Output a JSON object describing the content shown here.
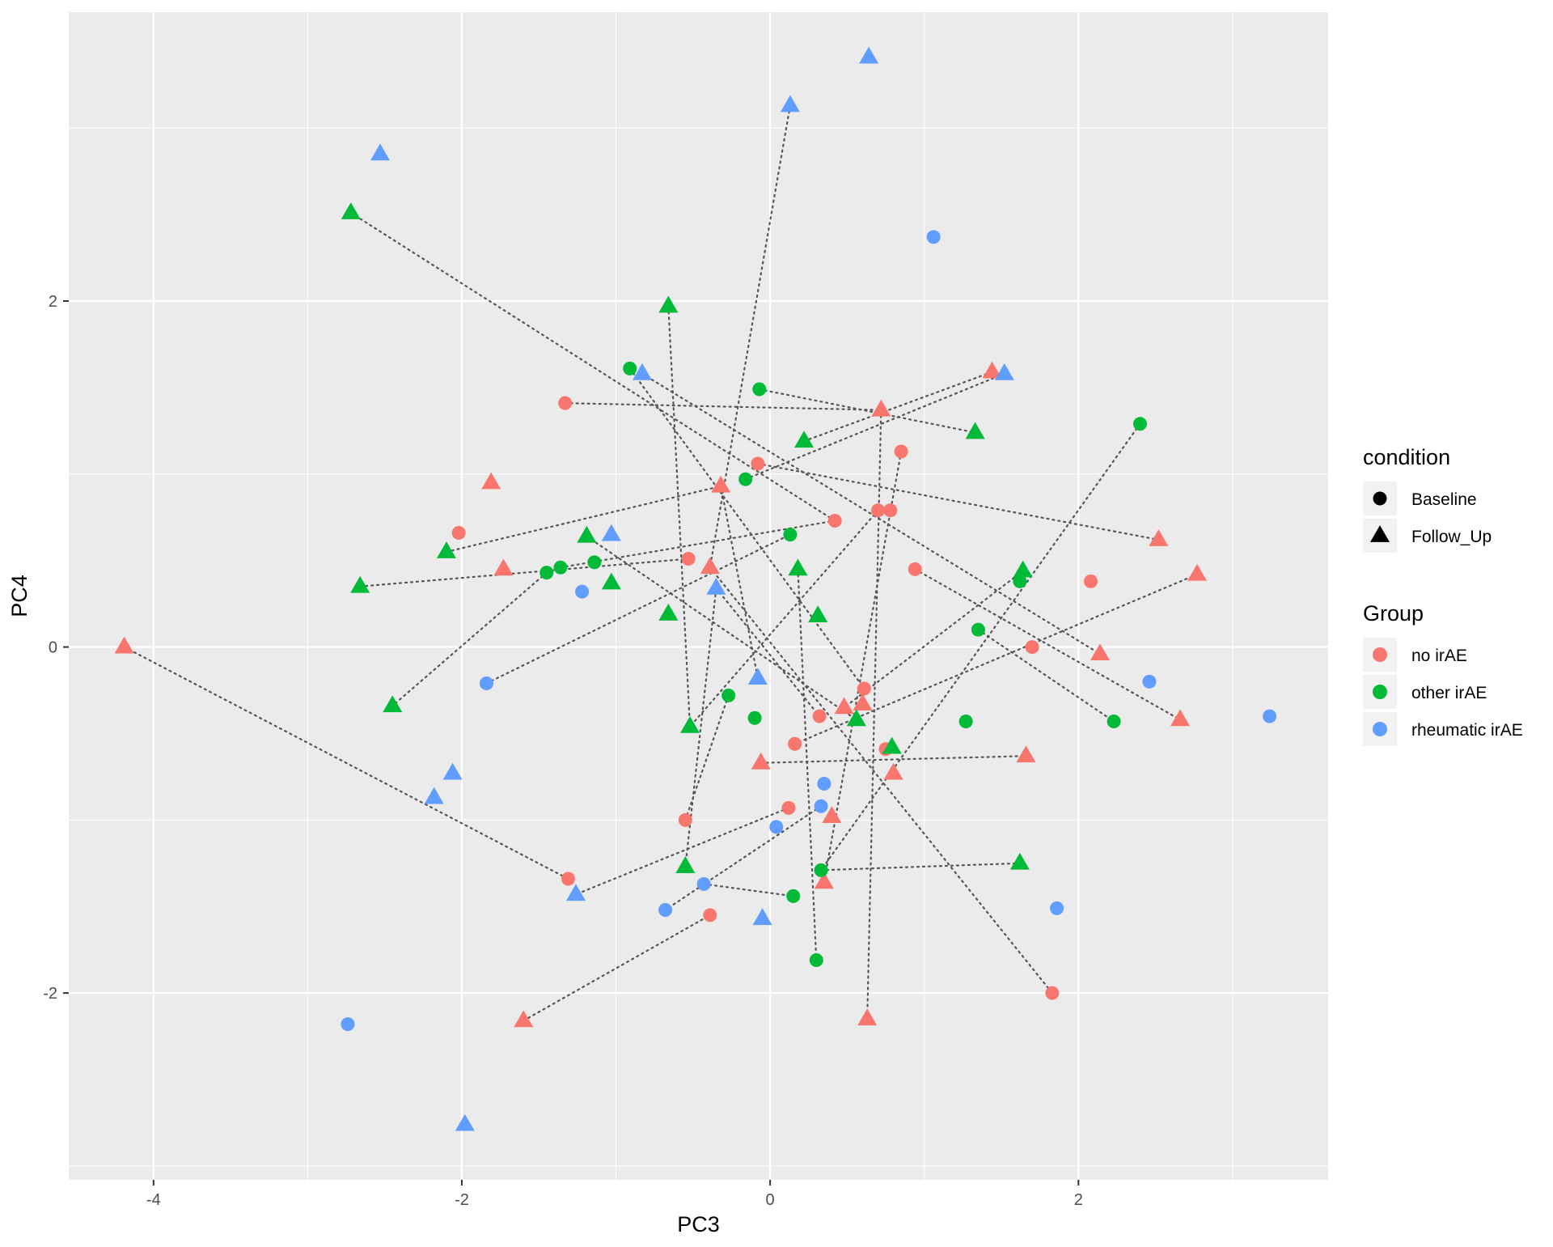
{
  "chart_data": {
    "type": "scatter",
    "title": "",
    "xlabel": "PC3",
    "ylabel": "PC4",
    "xlim": [
      -4.55,
      3.62
    ],
    "ylim": [
      -3.08,
      3.67
    ],
    "x_ticks": [
      -4,
      -2,
      0,
      2
    ],
    "y_ticks": [
      -2,
      0,
      2
    ],
    "x_tick_labels": [
      "-4",
      "-2",
      "0",
      "2"
    ],
    "y_tick_labels": [
      "-2",
      "0",
      "2"
    ],
    "grid": true,
    "legend_position": "right",
    "legends": {
      "condition": {
        "title": "condition",
        "items": [
          {
            "label": "Baseline",
            "shape": "circle"
          },
          {
            "label": "Follow_Up",
            "shape": "triangle"
          }
        ]
      },
      "group": {
        "title": "Group",
        "items": [
          {
            "label": "no irAE",
            "color": "#F8766D"
          },
          {
            "label": "other irAE",
            "color": "#00BA38"
          },
          {
            "label": "rheumatic irAE",
            "color": "#619CFF"
          }
        ]
      }
    },
    "colors": {
      "no irAE": "#F8766D",
      "other irAE": "#00BA38",
      "rheumatic irAE": "#619CFF"
    },
    "points": [
      {
        "x": -1.33,
        "y": 1.41,
        "group": "no irAE",
        "condition": "Baseline"
      },
      {
        "x": -2.02,
        "y": 0.66,
        "group": "no irAE",
        "condition": "Baseline"
      },
      {
        "x": -0.08,
        "y": 1.06,
        "group": "no irAE",
        "condition": "Baseline"
      },
      {
        "x": 0.85,
        "y": 1.13,
        "group": "no irAE",
        "condition": "Baseline"
      },
      {
        "x": 0.42,
        "y": 0.73,
        "group": "no irAE",
        "condition": "Baseline"
      },
      {
        "x": 0.7,
        "y": 0.79,
        "group": "no irAE",
        "condition": "Baseline"
      },
      {
        "x": 0.78,
        "y": 0.79,
        "group": "no irAE",
        "condition": "Baseline"
      },
      {
        "x": -0.53,
        "y": 0.51,
        "group": "no irAE",
        "condition": "Baseline"
      },
      {
        "x": 0.94,
        "y": 0.45,
        "group": "no irAE",
        "condition": "Baseline"
      },
      {
        "x": 2.08,
        "y": 0.38,
        "group": "no irAE",
        "condition": "Baseline"
      },
      {
        "x": 1.7,
        "y": 0.0,
        "group": "no irAE",
        "condition": "Baseline"
      },
      {
        "x": 0.61,
        "y": -0.24,
        "group": "no irAE",
        "condition": "Baseline"
      },
      {
        "x": 0.32,
        "y": -0.4,
        "group": "no irAE",
        "condition": "Baseline"
      },
      {
        "x": 0.16,
        "y": -0.56,
        "group": "no irAE",
        "condition": "Baseline"
      },
      {
        "x": 0.75,
        "y": -0.59,
        "group": "no irAE",
        "condition": "Baseline"
      },
      {
        "x": 0.12,
        "y": -0.93,
        "group": "no irAE",
        "condition": "Baseline"
      },
      {
        "x": -0.55,
        "y": -1.0,
        "group": "no irAE",
        "condition": "Baseline"
      },
      {
        "x": -1.31,
        "y": -1.34,
        "group": "no irAE",
        "condition": "Baseline"
      },
      {
        "x": -0.39,
        "y": -1.55,
        "group": "no irAE",
        "condition": "Baseline"
      },
      {
        "x": 1.83,
        "y": -2.0,
        "group": "no irAE",
        "condition": "Baseline"
      },
      {
        "x": 1.44,
        "y": 1.59,
        "group": "no irAE",
        "condition": "Follow_Up"
      },
      {
        "x": 0.72,
        "y": 1.37,
        "group": "no irAE",
        "condition": "Follow_Up"
      },
      {
        "x": -1.81,
        "y": 0.95,
        "group": "no irAE",
        "condition": "Follow_Up"
      },
      {
        "x": -0.32,
        "y": 0.93,
        "group": "no irAE",
        "condition": "Follow_Up"
      },
      {
        "x": -1.73,
        "y": 0.45,
        "group": "no irAE",
        "condition": "Follow_Up"
      },
      {
        "x": -0.39,
        "y": 0.46,
        "group": "no irAE",
        "condition": "Follow_Up"
      },
      {
        "x": 2.52,
        "y": 0.62,
        "group": "no irAE",
        "condition": "Follow_Up"
      },
      {
        "x": 2.77,
        "y": 0.42,
        "group": "no irAE",
        "condition": "Follow_Up"
      },
      {
        "x": -4.19,
        "y": 0.0,
        "group": "no irAE",
        "condition": "Follow_Up"
      },
      {
        "x": 2.14,
        "y": -0.04,
        "group": "no irAE",
        "condition": "Follow_Up"
      },
      {
        "x": 2.66,
        "y": -0.42,
        "group": "no irAE",
        "condition": "Follow_Up"
      },
      {
        "x": 0.48,
        "y": -0.35,
        "group": "no irAE",
        "condition": "Follow_Up"
      },
      {
        "x": 0.6,
        "y": -0.33,
        "group": "no irAE",
        "condition": "Follow_Up"
      },
      {
        "x": -0.06,
        "y": -0.67,
        "group": "no irAE",
        "condition": "Follow_Up"
      },
      {
        "x": 1.66,
        "y": -0.63,
        "group": "no irAE",
        "condition": "Follow_Up"
      },
      {
        "x": 0.8,
        "y": -0.73,
        "group": "no irAE",
        "condition": "Follow_Up"
      },
      {
        "x": 0.4,
        "y": -0.98,
        "group": "no irAE",
        "condition": "Follow_Up"
      },
      {
        "x": 0.35,
        "y": -1.36,
        "group": "no irAE",
        "condition": "Follow_Up"
      },
      {
        "x": -1.6,
        "y": -2.16,
        "group": "no irAE",
        "condition": "Follow_Up"
      },
      {
        "x": 0.63,
        "y": -2.15,
        "group": "no irAE",
        "condition": "Follow_Up"
      },
      {
        "x": -0.91,
        "y": 1.61,
        "group": "other irAE",
        "condition": "Baseline"
      },
      {
        "x": -0.07,
        "y": 1.49,
        "group": "other irAE",
        "condition": "Baseline"
      },
      {
        "x": 2.4,
        "y": 1.29,
        "group": "other irAE",
        "condition": "Baseline"
      },
      {
        "x": -0.16,
        "y": 0.97,
        "group": "other irAE",
        "condition": "Baseline"
      },
      {
        "x": 0.13,
        "y": 0.65,
        "group": "other irAE",
        "condition": "Baseline"
      },
      {
        "x": -1.45,
        "y": 0.43,
        "group": "other irAE",
        "condition": "Baseline"
      },
      {
        "x": -1.36,
        "y": 0.46,
        "group": "other irAE",
        "condition": "Baseline"
      },
      {
        "x": -1.14,
        "y": 0.49,
        "group": "other irAE",
        "condition": "Baseline"
      },
      {
        "x": 1.62,
        "y": 0.38,
        "group": "other irAE",
        "condition": "Baseline"
      },
      {
        "x": 1.35,
        "y": 0.1,
        "group": "other irAE",
        "condition": "Baseline"
      },
      {
        "x": -0.27,
        "y": -0.28,
        "group": "other irAE",
        "condition": "Baseline"
      },
      {
        "x": -0.1,
        "y": -0.41,
        "group": "other irAE",
        "condition": "Baseline"
      },
      {
        "x": 1.27,
        "y": -0.43,
        "group": "other irAE",
        "condition": "Baseline"
      },
      {
        "x": 2.23,
        "y": -0.43,
        "group": "other irAE",
        "condition": "Baseline"
      },
      {
        "x": 0.33,
        "y": -1.29,
        "group": "other irAE",
        "condition": "Baseline"
      },
      {
        "x": 0.15,
        "y": -1.44,
        "group": "other irAE",
        "condition": "Baseline"
      },
      {
        "x": 0.3,
        "y": -1.81,
        "group": "other irAE",
        "condition": "Baseline"
      },
      {
        "x": -2.72,
        "y": 2.51,
        "group": "other irAE",
        "condition": "Follow_Up"
      },
      {
        "x": -0.66,
        "y": 1.97,
        "group": "other irAE",
        "condition": "Follow_Up"
      },
      {
        "x": 1.33,
        "y": 1.24,
        "group": "other irAE",
        "condition": "Follow_Up"
      },
      {
        "x": 0.22,
        "y": 1.19,
        "group": "other irAE",
        "condition": "Follow_Up"
      },
      {
        "x": -1.19,
        "y": 0.64,
        "group": "other irAE",
        "condition": "Follow_Up"
      },
      {
        "x": -2.1,
        "y": 0.55,
        "group": "other irAE",
        "condition": "Follow_Up"
      },
      {
        "x": -2.66,
        "y": 0.35,
        "group": "other irAE",
        "condition": "Follow_Up"
      },
      {
        "x": -1.03,
        "y": 0.37,
        "group": "other irAE",
        "condition": "Follow_Up"
      },
      {
        "x": 0.18,
        "y": 0.45,
        "group": "other irAE",
        "condition": "Follow_Up"
      },
      {
        "x": 1.64,
        "y": 0.44,
        "group": "other irAE",
        "condition": "Follow_Up"
      },
      {
        "x": -0.66,
        "y": 0.19,
        "group": "other irAE",
        "condition": "Follow_Up"
      },
      {
        "x": 0.31,
        "y": 0.18,
        "group": "other irAE",
        "condition": "Follow_Up"
      },
      {
        "x": -2.45,
        "y": -0.34,
        "group": "other irAE",
        "condition": "Follow_Up"
      },
      {
        "x": -0.52,
        "y": -0.46,
        "group": "other irAE",
        "condition": "Follow_Up"
      },
      {
        "x": 0.56,
        "y": -0.42,
        "group": "other irAE",
        "condition": "Follow_Up"
      },
      {
        "x": 0.79,
        "y": -0.58,
        "group": "other irAE",
        "condition": "Follow_Up"
      },
      {
        "x": -0.55,
        "y": -1.27,
        "group": "other irAE",
        "condition": "Follow_Up"
      },
      {
        "x": 1.62,
        "y": -1.25,
        "group": "other irAE",
        "condition": "Follow_Up"
      },
      {
        "x": 1.06,
        "y": 2.37,
        "group": "rheumatic irAE",
        "condition": "Baseline"
      },
      {
        "x": -1.22,
        "y": 0.32,
        "group": "rheumatic irAE",
        "condition": "Baseline"
      },
      {
        "x": -1.84,
        "y": -0.21,
        "group": "rheumatic irAE",
        "condition": "Baseline"
      },
      {
        "x": 2.46,
        "y": -0.2,
        "group": "rheumatic irAE",
        "condition": "Baseline"
      },
      {
        "x": 3.24,
        "y": -0.4,
        "group": "rheumatic irAE",
        "condition": "Baseline"
      },
      {
        "x": 0.35,
        "y": -0.79,
        "group": "rheumatic irAE",
        "condition": "Baseline"
      },
      {
        "x": 0.33,
        "y": -0.92,
        "group": "rheumatic irAE",
        "condition": "Baseline"
      },
      {
        "x": 0.04,
        "y": -1.04,
        "group": "rheumatic irAE",
        "condition": "Baseline"
      },
      {
        "x": -0.43,
        "y": -1.37,
        "group": "rheumatic irAE",
        "condition": "Baseline"
      },
      {
        "x": -0.68,
        "y": -1.52,
        "group": "rheumatic irAE",
        "condition": "Baseline"
      },
      {
        "x": 1.86,
        "y": -1.51,
        "group": "rheumatic irAE",
        "condition": "Baseline"
      },
      {
        "x": -2.74,
        "y": -2.18,
        "group": "rheumatic irAE",
        "condition": "Baseline"
      },
      {
        "x": 0.64,
        "y": 3.41,
        "group": "rheumatic irAE",
        "condition": "Follow_Up"
      },
      {
        "x": 0.13,
        "y": 3.13,
        "group": "rheumatic irAE",
        "condition": "Follow_Up"
      },
      {
        "x": -2.53,
        "y": 2.85,
        "group": "rheumatic irAE",
        "condition": "Follow_Up"
      },
      {
        "x": -0.83,
        "y": 1.58,
        "group": "rheumatic irAE",
        "condition": "Follow_Up"
      },
      {
        "x": 1.52,
        "y": 1.58,
        "group": "rheumatic irAE",
        "condition": "Follow_Up"
      },
      {
        "x": -1.03,
        "y": 0.65,
        "group": "rheumatic irAE",
        "condition": "Follow_Up"
      },
      {
        "x": -0.35,
        "y": 0.34,
        "group": "rheumatic irAE",
        "condition": "Follow_Up"
      },
      {
        "x": -0.08,
        "y": -0.18,
        "group": "rheumatic irAE",
        "condition": "Follow_Up"
      },
      {
        "x": -2.06,
        "y": -0.73,
        "group": "rheumatic irAE",
        "condition": "Follow_Up"
      },
      {
        "x": -2.18,
        "y": -0.87,
        "group": "rheumatic irAE",
        "condition": "Follow_Up"
      },
      {
        "x": -1.26,
        "y": -1.43,
        "group": "rheumatic irAE",
        "condition": "Follow_Up"
      },
      {
        "x": -0.05,
        "y": -1.57,
        "group": "rheumatic irAE",
        "condition": "Follow_Up"
      },
      {
        "x": -1.98,
        "y": -2.76,
        "group": "rheumatic irAE",
        "condition": "Follow_Up"
      }
    ],
    "paired_segments": [
      [
        [
          -2.72,
          2.51
        ],
        [
          0.42,
          0.73
        ]
      ],
      [
        [
          -1.33,
          1.41
        ],
        [
          0.72,
          1.37
        ]
      ],
      [
        [
          -0.07,
          1.49
        ],
        [
          1.33,
          1.24
        ]
      ],
      [
        [
          -0.91,
          1.61
        ],
        [
          0.61,
          -0.24
        ]
      ],
      [
        [
          -0.83,
          1.58
        ],
        [
          2.14,
          -0.04
        ]
      ],
      [
        [
          0.13,
          3.13
        ],
        [
          -0.39,
          0.46
        ]
      ],
      [
        [
          -0.66,
          1.97
        ],
        [
          -0.52,
          -0.46
        ]
      ],
      [
        [
          0.22,
          1.19
        ],
        [
          1.44,
          1.59
        ]
      ],
      [
        [
          -0.16,
          0.97
        ],
        [
          1.52,
          1.58
        ]
      ],
      [
        [
          -2.1,
          0.55
        ],
        [
          -0.32,
          0.93
        ]
      ],
      [
        [
          -0.08,
          1.06
        ],
        [
          2.52,
          0.62
        ]
      ],
      [
        [
          0.85,
          1.13
        ],
        [
          0.35,
          -1.36
        ]
      ],
      [
        [
          0.72,
          1.37
        ],
        [
          0.63,
          -2.15
        ]
      ],
      [
        [
          -2.66,
          0.35
        ],
        [
          -0.53,
          0.51
        ]
      ],
      [
        [
          -1.36,
          0.46
        ],
        [
          0.42,
          0.73
        ]
      ],
      [
        [
          -1.45,
          0.43
        ],
        [
          -2.45,
          -0.34
        ]
      ],
      [
        [
          -1.84,
          -0.21
        ],
        [
          0.13,
          0.65
        ]
      ],
      [
        [
          -1.19,
          0.64
        ],
        [
          0.56,
          -0.42
        ]
      ],
      [
        [
          -0.32,
          0.93
        ],
        [
          -0.08,
          -0.18
        ]
      ],
      [
        [
          -0.39,
          0.46
        ],
        [
          1.83,
          -2.0
        ]
      ],
      [
        [
          -0.35,
          0.34
        ],
        [
          0.32,
          -0.4
        ]
      ],
      [
        [
          0.18,
          0.45
        ],
        [
          0.3,
          -1.81
        ]
      ],
      [
        [
          0.94,
          0.45
        ],
        [
          2.66,
          -0.42
        ]
      ],
      [
        [
          0.7,
          0.79
        ],
        [
          -0.52,
          -0.46
        ]
      ],
      [
        [
          1.64,
          0.44
        ],
        [
          0.48,
          -0.35
        ]
      ],
      [
        [
          -4.19,
          0.0
        ],
        [
          -1.31,
          -1.34
        ]
      ],
      [
        [
          2.4,
          1.29
        ],
        [
          0.33,
          -1.29
        ]
      ],
      [
        [
          2.77,
          0.42
        ],
        [
          0.16,
          -0.56
        ]
      ],
      [
        [
          1.35,
          0.1
        ],
        [
          2.23,
          -0.43
        ]
      ],
      [
        [
          -0.06,
          -0.67
        ],
        [
          1.66,
          -0.63
        ]
      ],
      [
        [
          0.12,
          -0.93
        ],
        [
          -1.26,
          -1.43
        ]
      ],
      [
        [
          0.33,
          -0.92
        ],
        [
          -0.68,
          -1.52
        ]
      ],
      [
        [
          -0.43,
          -1.37
        ],
        [
          0.15,
          -1.44
        ]
      ],
      [
        [
          -1.6,
          -2.16
        ],
        [
          -0.39,
          -1.55
        ]
      ],
      [
        [
          0.33,
          -1.29
        ],
        [
          1.62,
          -1.25
        ]
      ],
      [
        [
          -0.55,
          -1.0
        ],
        [
          -0.27,
          -0.28
        ]
      ],
      [
        [
          -0.55,
          -1.27
        ],
        [
          -0.35,
          0.34
        ]
      ],
      [
        [
          0.61,
          -0.24
        ],
        [
          0.6,
          -0.33
        ]
      ]
    ]
  }
}
